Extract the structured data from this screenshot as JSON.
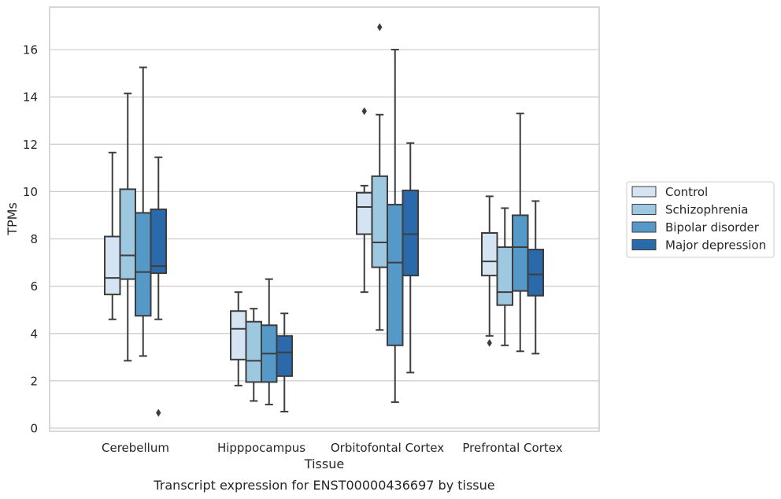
{
  "chart_data": {
    "type": "box",
    "title": "",
    "caption": "Transcript expression for ENST00000436697 by tissue",
    "xlabel": "Tissue",
    "ylabel": "TPMs",
    "ylim": [
      -0.15,
      17.8
    ],
    "yticks": [
      0,
      2,
      4,
      6,
      8,
      10,
      12,
      14,
      16
    ],
    "grid": "horizontal",
    "legend_position": "right",
    "categories": [
      "Cerebellum",
      "Hipppocampus",
      "Orbitofontal Cortex",
      "Prefrontal Cortex"
    ],
    "series": [
      {
        "name": "Control",
        "color": "#d4e4f2",
        "boxes": [
          {
            "whisker_low": 4.6,
            "q1": 5.65,
            "median": 6.35,
            "q3": 8.1,
            "whisker_high": 11.65,
            "outliers": []
          },
          {
            "whisker_low": 1.8,
            "q1": 2.9,
            "median": 4.2,
            "q3": 4.95,
            "whisker_high": 5.75,
            "outliers": []
          },
          {
            "whisker_low": 5.75,
            "q1": 8.2,
            "median": 9.35,
            "q3": 9.95,
            "whisker_high": 10.25,
            "outliers": [
              13.4
            ]
          },
          {
            "whisker_low": 3.9,
            "q1": 6.45,
            "median": 7.05,
            "q3": 8.25,
            "whisker_high": 9.8,
            "outliers": [
              3.6
            ]
          }
        ]
      },
      {
        "name": "Schizophrenia",
        "color": "#9ec7e0",
        "boxes": [
          {
            "whisker_low": 2.85,
            "q1": 6.3,
            "median": 7.3,
            "q3": 10.1,
            "whisker_high": 14.15,
            "outliers": []
          },
          {
            "whisker_low": 1.15,
            "q1": 1.95,
            "median": 2.85,
            "q3": 4.5,
            "whisker_high": 5.05,
            "outliers": []
          },
          {
            "whisker_low": 4.15,
            "q1": 6.8,
            "median": 7.85,
            "q3": 10.65,
            "whisker_high": 13.25,
            "outliers": [
              16.95
            ]
          },
          {
            "whisker_low": 3.5,
            "q1": 5.2,
            "median": 5.75,
            "q3": 7.65,
            "whisker_high": 9.3,
            "outliers": []
          }
        ]
      },
      {
        "name": "Bipolar disorder",
        "color": "#5499c8",
        "boxes": [
          {
            "whisker_low": 3.05,
            "q1": 4.75,
            "median": 6.6,
            "q3": 9.1,
            "whisker_high": 15.25,
            "outliers": []
          },
          {
            "whisker_low": 1.0,
            "q1": 1.95,
            "median": 3.15,
            "q3": 4.35,
            "whisker_high": 6.3,
            "outliers": []
          },
          {
            "whisker_low": 1.1,
            "q1": 3.5,
            "median": 7.0,
            "q3": 9.45,
            "whisker_high": 16.0,
            "outliers": []
          },
          {
            "whisker_low": 3.25,
            "q1": 5.8,
            "median": 7.65,
            "q3": 9.0,
            "whisker_high": 13.3,
            "outliers": []
          }
        ]
      },
      {
        "name": "Major depression",
        "color": "#2a6aab",
        "boxes": [
          {
            "whisker_low": 4.6,
            "q1": 6.55,
            "median": 6.85,
            "q3": 9.25,
            "whisker_high": 11.45,
            "outliers": [
              0.65
            ]
          },
          {
            "whisker_low": 0.7,
            "q1": 2.2,
            "median": 3.2,
            "q3": 3.9,
            "whisker_high": 4.85,
            "outliers": []
          },
          {
            "whisker_low": 2.35,
            "q1": 6.45,
            "median": 8.2,
            "q3": 10.05,
            "whisker_high": 12.05,
            "outliers": []
          },
          {
            "whisker_low": 3.15,
            "q1": 5.6,
            "median": 6.5,
            "q3": 7.55,
            "whisker_high": 9.6,
            "outliers": []
          }
        ]
      }
    ]
  }
}
